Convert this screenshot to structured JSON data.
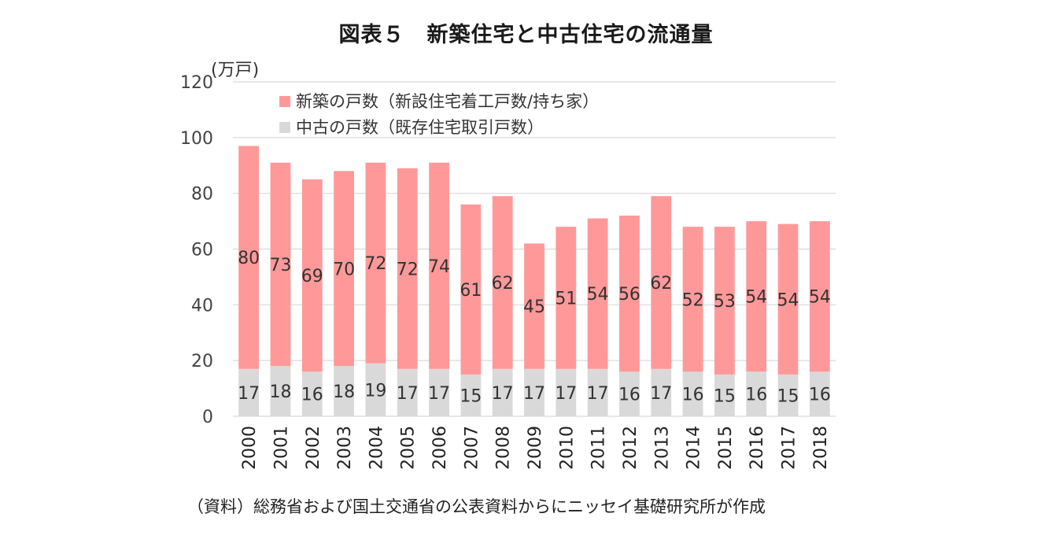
{
  "title": "図表５　新築住宅と中古住宅の流通量",
  "source": "（資料）総務省および国土交通省の公表資料からにニッセイ基礎研究所が作成",
  "chart_data": {
    "type": "bar",
    "stacked": true,
    "unit_label": "(万戸)",
    "categories": [
      "2000",
      "2001",
      "2002",
      "2003",
      "2004",
      "2005",
      "2006",
      "2007",
      "2008",
      "2009",
      "2010",
      "2011",
      "2012",
      "2013",
      "2014",
      "2015",
      "2016",
      "2017",
      "2018"
    ],
    "series": [
      {
        "name": "中古の戸数（既存住宅取引戸数）",
        "color": "#d9d9d9",
        "values": [
          17,
          18,
          16,
          18,
          19,
          17,
          17,
          15,
          17,
          17,
          17,
          17,
          16,
          17,
          16,
          15,
          16,
          15,
          16
        ]
      },
      {
        "name": "新築の戸数（新設住宅着工戸数/持ち家）",
        "color": "#ff9999",
        "values": [
          80,
          73,
          69,
          70,
          72,
          72,
          74,
          61,
          62,
          45,
          51,
          54,
          56,
          62,
          52,
          53,
          54,
          54,
          54
        ]
      }
    ],
    "ylim": [
      0,
      120
    ],
    "yticks": [
      0,
      20,
      40,
      60,
      80,
      100,
      120
    ],
    "grid": true,
    "legend_position": "top-left"
  }
}
